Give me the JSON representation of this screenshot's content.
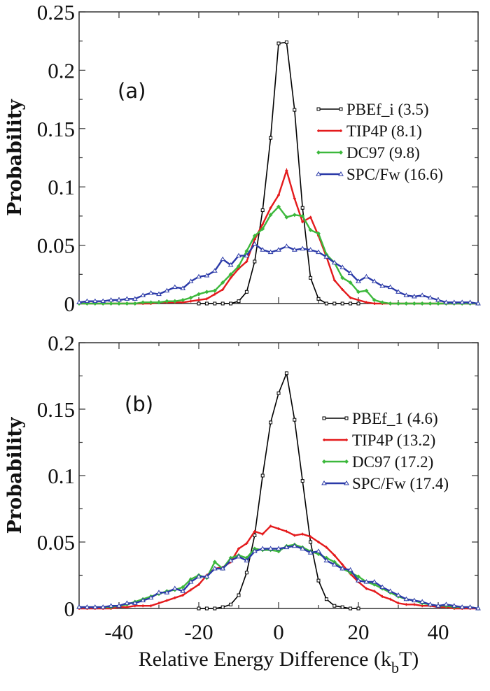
{
  "chart_data": [
    {
      "type": "line",
      "panel_label": "(a)",
      "ylabel": "Probability",
      "xlabel": "",
      "xlim": [
        -50,
        50
      ],
      "ylim": [
        0,
        0.25
      ],
      "yticks": [
        "0",
        "0.05",
        "0.1",
        "0.15",
        "0.2",
        "0.25"
      ],
      "xticks": [],
      "legend_position": "right",
      "x": [
        -50,
        -48,
        -46,
        -44,
        -42,
        -40,
        -38,
        -36,
        -34,
        -32,
        -30,
        -28,
        -26,
        -24,
        -22,
        -20,
        -18,
        -16,
        -14,
        -12,
        -10,
        -8,
        -6,
        -4,
        -2,
        0,
        2,
        4,
        6,
        8,
        10,
        12,
        14,
        16,
        18,
        20,
        22,
        24,
        26,
        28,
        30,
        32,
        34,
        36,
        38,
        40,
        42,
        44,
        46,
        48,
        50
      ],
      "series": [
        {
          "name": "PBEf_i (3.5)",
          "color": "#000000",
          "marker": "square",
          "values": [
            null,
            null,
            null,
            null,
            null,
            null,
            null,
            null,
            null,
            null,
            null,
            null,
            null,
            null,
            null,
            0,
            0,
            0,
            0,
            0,
            0.002,
            0.01,
            0.036,
            0.08,
            0.142,
            0.223,
            0.224,
            0.166,
            0.082,
            0.022,
            0.004,
            0,
            0,
            0,
            0,
            0,
            null,
            null,
            null,
            null,
            null,
            null,
            null,
            null,
            null,
            null,
            null,
            null,
            null,
            null,
            null
          ]
        },
        {
          "name": "TIP4P (8.1)",
          "color": "#e41a1c",
          "marker": "plus",
          "values": [
            0,
            0,
            0,
            0,
            0,
            0,
            0,
            0,
            0,
            0,
            0.001,
            0.001,
            0.001,
            0.001,
            0.002,
            0.003,
            0.004,
            0.008,
            0.012,
            0.022,
            0.03,
            0.036,
            0.055,
            0.068,
            0.082,
            0.093,
            0.114,
            0.09,
            0.07,
            0.074,
            0.058,
            0.04,
            0.02,
            0.012,
            0.005,
            0.003,
            0.001,
            0,
            0,
            0,
            0,
            0,
            0,
            0,
            0,
            0,
            0,
            0,
            0,
            0,
            0
          ]
        },
        {
          "name": "DC97 (9.8)",
          "color": "#3cb83c",
          "marker": "diamond",
          "values": [
            0,
            0,
            0,
            0,
            0,
            0,
            0,
            0,
            0.001,
            0.001,
            0.001,
            0.002,
            0.002,
            0.003,
            0.005,
            0.008,
            0.01,
            0.011,
            0.018,
            0.025,
            0.032,
            0.045,
            0.058,
            0.064,
            0.076,
            0.083,
            0.074,
            0.076,
            0.075,
            0.063,
            0.06,
            0.042,
            0.035,
            0.022,
            0.018,
            0.01,
            0.011,
            0.003,
            0.001,
            0,
            0,
            0,
            0,
            0,
            0,
            0,
            0,
            0,
            0,
            0,
            0
          ]
        },
        {
          "name": "SPC/Fw (16.6)",
          "color": "#2b3aa8",
          "marker": "triangle",
          "values": [
            0.001,
            0.002,
            0.002,
            0.002,
            0.003,
            0.003,
            0.004,
            0.004,
            0.007,
            0.009,
            0.008,
            0.011,
            0.014,
            0.013,
            0.019,
            0.023,
            0.024,
            0.028,
            0.038,
            0.033,
            0.041,
            0.041,
            0.051,
            0.046,
            0.044,
            0.046,
            0.049,
            0.046,
            0.047,
            0.046,
            0.044,
            0.04,
            0.035,
            0.031,
            0.026,
            0.019,
            0.023,
            0.019,
            0.015,
            0.014,
            0.01,
            0.007,
            0.006,
            0.007,
            0.005,
            0.003,
            0.001,
            0.001,
            0.001,
            0.001,
            0
          ]
        }
      ]
    },
    {
      "type": "line",
      "panel_label": "(b)",
      "ylabel": "Probability",
      "xlabel": "Relative Energy Difference (k",
      "xlabel_sub": "b",
      "xlabel_tail": "T)",
      "xlim": [
        -50,
        50
      ],
      "ylim": [
        0,
        0.2
      ],
      "yticks": [
        "0",
        "0.05",
        "0.1",
        "0.15",
        "0.2"
      ],
      "xticks": [
        "-40",
        "-20",
        "0",
        "20",
        "40"
      ],
      "legend_position": "right",
      "x": [
        -50,
        -48,
        -46,
        -44,
        -42,
        -40,
        -38,
        -36,
        -34,
        -32,
        -30,
        -28,
        -26,
        -24,
        -22,
        -20,
        -18,
        -16,
        -14,
        -12,
        -10,
        -8,
        -6,
        -4,
        -2,
        0,
        2,
        4,
        6,
        8,
        10,
        12,
        14,
        16,
        18,
        20,
        22,
        24,
        26,
        28,
        30,
        32,
        34,
        36,
        38,
        40,
        42,
        44,
        46,
        48,
        50
      ],
      "series": [
        {
          "name": "PBEf_1 (4.6)",
          "color": "#000000",
          "marker": "square",
          "values": [
            null,
            null,
            null,
            null,
            null,
            null,
            null,
            null,
            null,
            null,
            null,
            null,
            null,
            null,
            null,
            0,
            0,
            0,
            0.001,
            0.003,
            0.01,
            0.027,
            0.055,
            0.1,
            0.14,
            0.162,
            0.177,
            0.142,
            0.096,
            0.05,
            0.021,
            0.007,
            0.002,
            0.001,
            0,
            0,
            null,
            null,
            null,
            null,
            null,
            null,
            null,
            null,
            null,
            null,
            null,
            null,
            null,
            null,
            null
          ]
        },
        {
          "name": "TIP4P (13.2)",
          "color": "#e41a1c",
          "marker": "plus",
          "values": [
            0,
            0,
            0,
            0,
            0,
            0.001,
            0.001,
            0.002,
            0.002,
            0.002,
            0.004,
            0.006,
            0.008,
            0.01,
            0.014,
            0.018,
            0.025,
            0.03,
            0.031,
            0.035,
            0.045,
            0.049,
            0.058,
            0.056,
            0.062,
            0.06,
            0.058,
            0.055,
            0.056,
            0.054,
            0.05,
            0.046,
            0.04,
            0.033,
            0.026,
            0.02,
            0.015,
            0.013,
            0.009,
            0.007,
            0.004,
            0.003,
            0.003,
            0.002,
            0.002,
            0.001,
            0.001,
            0,
            0,
            0,
            0
          ]
        },
        {
          "name": "DC97 (17.2)",
          "color": "#3cb83c",
          "marker": "diamond",
          "values": [
            0.001,
            0.001,
            0.001,
            0.001,
            0.001,
            0.002,
            0.003,
            0.005,
            0.007,
            0.009,
            0.011,
            0.013,
            0.014,
            0.016,
            0.022,
            0.025,
            0.023,
            0.035,
            0.03,
            0.038,
            0.04,
            0.038,
            0.045,
            0.044,
            0.044,
            0.043,
            0.047,
            0.048,
            0.046,
            0.043,
            0.041,
            0.038,
            0.035,
            0.03,
            0.027,
            0.024,
            0.02,
            0.018,
            0.015,
            0.012,
            0.009,
            0.007,
            0.006,
            0.004,
            0.003,
            0.002,
            0.002,
            0.001,
            0.001,
            0.001,
            0
          ]
        },
        {
          "name": "SPC/Fw (17.4)",
          "color": "#2b3aa8",
          "marker": "triangle",
          "values": [
            0.001,
            0.001,
            0.001,
            0.001,
            0.002,
            0.002,
            0.004,
            0.004,
            0.006,
            0.008,
            0.012,
            0.012,
            0.015,
            0.013,
            0.02,
            0.024,
            0.024,
            0.03,
            0.03,
            0.036,
            0.039,
            0.036,
            0.043,
            0.045,
            0.045,
            0.045,
            0.046,
            0.047,
            0.045,
            0.042,
            0.043,
            0.036,
            0.033,
            0.03,
            0.029,
            0.021,
            0.02,
            0.02,
            0.016,
            0.013,
            0.01,
            0.007,
            0.006,
            0.005,
            0.003,
            0.002,
            0.003,
            0.002,
            0.001,
            0.001,
            0
          ]
        }
      ]
    }
  ]
}
